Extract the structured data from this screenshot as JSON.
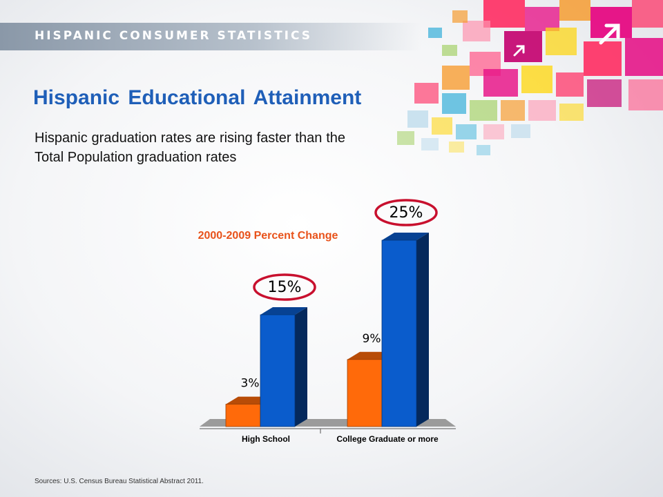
{
  "header": {
    "section_label": "HISPANIC CONSUMER STATISTICS"
  },
  "page": {
    "title": "Hispanic Educational Attainment",
    "subtitle": "Hispanic graduation rates are rising faster than the Total Population graduation rates",
    "sources": "Sources: U.S. Census Bureau Statistical Abstract 2011."
  },
  "chart_data": {
    "type": "bar",
    "title": "2000-2009 Percent Change",
    "categories": [
      "High School",
      "College Graduate or more"
    ],
    "series": [
      {
        "values": [
          3,
          9
        ],
        "labels": [
          "3%",
          "9%"
        ],
        "color": "#ff6a0a"
      },
      {
        "values": [
          15,
          25
        ],
        "labels": [
          "15%",
          "25%"
        ],
        "color": "#0a5ccc"
      }
    ],
    "highlighted_labels": [
      "15%",
      "25%"
    ],
    "highlight_color": "#c8102e",
    "grid": false,
    "legend": "none"
  },
  "colors": {
    "title_blue": "#1f5fb8",
    "chart_title_orange": "#e8521a",
    "header_bar": "#a3afbd",
    "decoration": [
      "#e6007e",
      "#ff2e63",
      "#1fa7d6",
      "#f7941d",
      "#ffd400",
      "#8dc63f",
      "#b0d6ea"
    ]
  },
  "icons": [
    "arrow-up-right-icon",
    "arrow-up-right-icon"
  ]
}
